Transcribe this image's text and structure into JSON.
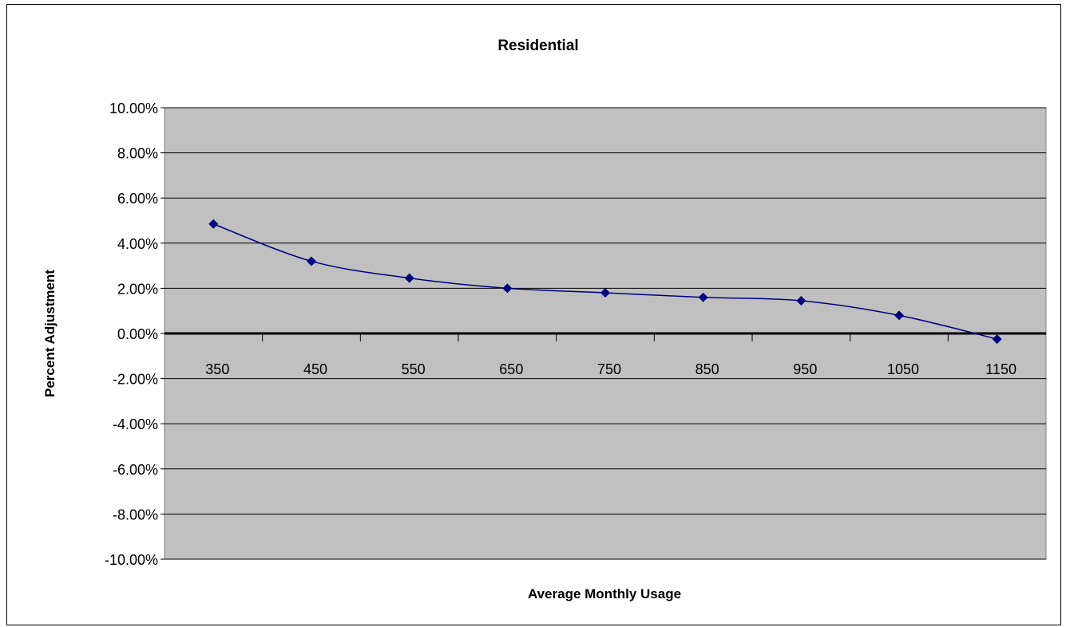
{
  "chart_data": {
    "type": "line",
    "title": "Residential",
    "xlabel": "Average Monthly Usage",
    "ylabel": "Percent Adjustment",
    "categories": [
      "350",
      "450",
      "550",
      "650",
      "750",
      "850",
      "950",
      "1050",
      "1150"
    ],
    "series": [
      {
        "values": [
          4.85,
          3.2,
          2.45,
          2.0,
          1.8,
          1.6,
          1.45,
          0.8,
          -0.25
        ]
      }
    ],
    "y_ticks": [
      "10.00%",
      "8.00%",
      "6.00%",
      "4.00%",
      "2.00%",
      "0.00%",
      "-2.00%",
      "-4.00%",
      "-6.00%",
      "-8.00%",
      "-10.00%"
    ],
    "ylim": [
      -10,
      10
    ],
    "y_tick_step": 2,
    "grid": true,
    "legend": false,
    "colors": {
      "plot_background": "#c0c0c0",
      "series_line": "#000080",
      "gridline": "#000000",
      "zero_line": "#000000"
    }
  }
}
